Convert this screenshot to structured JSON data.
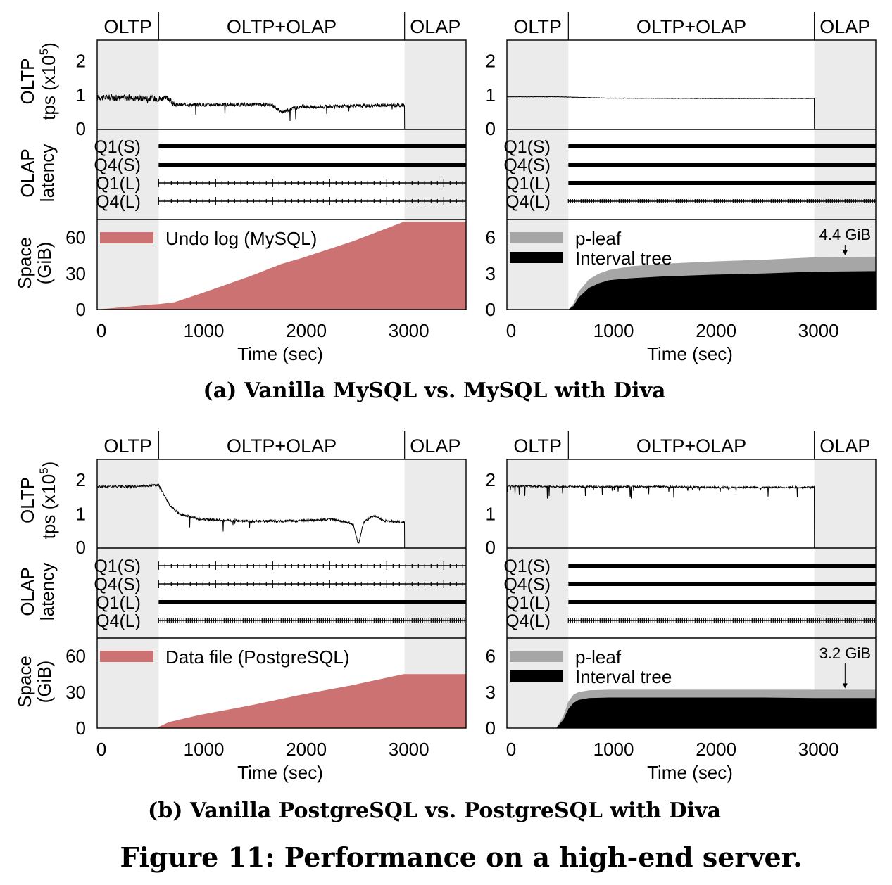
{
  "chart_data": [
    {
      "type": "line",
      "panel": "a-left",
      "phases": [
        "OLTP",
        "OLTP+OLAP",
        "OLAP"
      ],
      "phase_bounds": [
        0,
        600,
        3000,
        3600
      ],
      "xlabel": "Time (sec)",
      "xticks": [
        "0",
        "1000",
        "2000",
        "3000"
      ],
      "xlim": [
        0,
        3600
      ],
      "oltp": {
        "ylabel": [
          "OLTP",
          "tps (x10",
          "5",
          ")"
        ],
        "yticks": [
          "0",
          "1",
          "2"
        ],
        "ylim": [
          0,
          2.6
        ],
        "x": [
          0,
          300,
          600,
          700,
          750,
          1000,
          1500,
          1700,
          1800,
          1900,
          2000,
          2200,
          2500,
          2800,
          2990
        ],
        "y": [
          0.93,
          0.92,
          0.9,
          0.9,
          0.72,
          0.72,
          0.72,
          0.72,
          0.5,
          0.6,
          0.66,
          0.66,
          0.68,
          0.7,
          0.7
        ],
        "end": 3000
      },
      "olap": {
        "ylabel": [
          "OLAP",
          "latency"
        ],
        "rows": [
          "Q1(S)",
          "Q4(S)",
          "Q1(L)",
          "Q4(L)"
        ],
        "styles": [
          "thick",
          "thick",
          "sparse",
          "sparse"
        ]
      },
      "space": {
        "ylabel": [
          "Space",
          "(GiB)"
        ],
        "yticks": [
          "0",
          "30",
          "60"
        ],
        "ylim": [
          0,
          75
        ],
        "series": [
          {
            "name": "Undo log (MySQL)",
            "color": "#cc7272",
            "x": [
              0,
              500,
              600,
              750,
              1000,
              1500,
              1800,
              2000,
              2500,
              2990,
              3600
            ],
            "y": [
              0,
              4,
              4.5,
              6,
              13,
              28,
              38,
              43,
              57,
              73,
              73
            ]
          }
        ]
      }
    },
    {
      "type": "line",
      "panel": "a-right",
      "phases": [
        "OLTP",
        "OLTP+OLAP",
        "OLAP"
      ],
      "phase_bounds": [
        0,
        600,
        3000,
        3600
      ],
      "xlabel": "Time (sec)",
      "xticks": [
        "0",
        "1000",
        "2000",
        "3000"
      ],
      "xlim": [
        0,
        3600
      ],
      "oltp": {
        "yticks": [
          "0",
          "1",
          "2"
        ],
        "ylim": [
          0,
          2.6
        ],
        "x": [
          0,
          500,
          700,
          1000,
          2000,
          2990
        ],
        "y": [
          0.95,
          0.95,
          0.93,
          0.91,
          0.9,
          0.9
        ],
        "end": 3000
      },
      "olap": {
        "rows": [
          "Q1(S)",
          "Q4(S)",
          "Q1(L)",
          "Q4(L)"
        ],
        "styles": [
          "thick",
          "thick",
          "thick",
          "dense"
        ]
      },
      "space": {
        "yticks": [
          "0",
          "3",
          "6"
        ],
        "ylim": [
          0,
          7.5
        ],
        "annotation": "4.4 GiB",
        "annotation_x": 3300,
        "annotation_y": 4.4,
        "series": [
          {
            "name": "p-leaf",
            "color": "#a6a6a6",
            "x": [
              0,
              600,
              650,
              700,
              800,
              900,
              1000,
              1200,
              1500,
              2000,
              2500,
              3000,
              3600
            ],
            "y": [
              0,
              0,
              0.5,
              1.5,
              2.5,
              3.0,
              3.3,
              3.6,
              3.8,
              4.0,
              4.15,
              4.35,
              4.4
            ]
          },
          {
            "name": "Interval tree",
            "color": "#000000",
            "x": [
              0,
              600,
              650,
              700,
              800,
              900,
              1000,
              1200,
              1500,
              2000,
              2500,
              3000,
              3600
            ],
            "y": [
              0,
              0,
              0.3,
              1.0,
              1.8,
              2.2,
              2.45,
              2.6,
              2.75,
              2.9,
              3.0,
              3.15,
              3.2
            ]
          }
        ]
      }
    },
    {
      "type": "line",
      "panel": "b-left",
      "phases": [
        "OLTP",
        "OLTP+OLAP",
        "OLAP"
      ],
      "phase_bounds": [
        0,
        600,
        3000,
        3600
      ],
      "xlabel": "Time (sec)",
      "xticks": [
        "0",
        "1000",
        "2000",
        "3000"
      ],
      "xlim": [
        0,
        3600
      ],
      "oltp": {
        "ylabel": [
          "OLTP",
          "tps (x10",
          "5",
          ")"
        ],
        "yticks": [
          "0",
          "1",
          "2"
        ],
        "ylim": [
          0,
          2.6
        ],
        "x": [
          0,
          300,
          600,
          700,
          800,
          1000,
          1500,
          2000,
          2300,
          2500,
          2550,
          2600,
          2700,
          2800,
          2990
        ],
        "y": [
          1.8,
          1.8,
          1.85,
          1.3,
          1.0,
          0.85,
          0.78,
          0.8,
          0.85,
          0.7,
          0.1,
          0.75,
          0.95,
          0.8,
          0.75
        ],
        "end": 3000
      },
      "olap": {
        "ylabel": [
          "OLAP",
          "latency"
        ],
        "rows": [
          "Q1(S)",
          "Q4(S)",
          "Q1(L)",
          "Q4(L)"
        ],
        "styles": [
          "sparse",
          "sparse",
          "thick",
          "dense"
        ]
      },
      "space": {
        "ylabel": [
          "Space",
          "(GiB)"
        ],
        "yticks": [
          "0",
          "30",
          "60"
        ],
        "ylim": [
          0,
          75
        ],
        "series": [
          {
            "name": "Data file (PostgreSQL)",
            "color": "#cc7272",
            "x": [
              0,
              580,
              600,
              700,
              1000,
              1500,
              2000,
              2500,
              2990,
              3600
            ],
            "y": [
              0,
              0,
              1,
              5,
              11,
              19,
              28,
              36,
              45,
              45
            ]
          }
        ]
      }
    },
    {
      "type": "line",
      "panel": "b-right",
      "phases": [
        "OLTP",
        "OLTP+OLAP",
        "OLAP"
      ],
      "phase_bounds": [
        0,
        600,
        3000,
        3600
      ],
      "xlabel": "Time (sec)",
      "xticks": [
        "0",
        "1000",
        "2000",
        "3000"
      ],
      "xlim": [
        0,
        3600
      ],
      "oltp": {
        "yticks": [
          "0",
          "1",
          "2"
        ],
        "ylim": [
          0,
          2.6
        ],
        "x": [
          0,
          600,
          1000,
          1500,
          2000,
          2500,
          2990
        ],
        "y": [
          1.82,
          1.8,
          1.8,
          1.8,
          1.78,
          1.78,
          1.78
        ],
        "end": 3000
      },
      "olap": {
        "rows": [
          "Q1(S)",
          "Q4(S)",
          "Q1(L)",
          "Q4(L)"
        ],
        "styles": [
          "thick",
          "thick",
          "thick",
          "dense"
        ]
      },
      "space": {
        "yticks": [
          "0",
          "3",
          "6"
        ],
        "ylim": [
          0,
          7.5
        ],
        "annotation": "3.2 GiB",
        "annotation_x": 3300,
        "annotation_y": 3.2,
        "series": [
          {
            "name": "p-leaf",
            "color": "#a6a6a6",
            "x": [
              0,
              480,
              550,
              600,
              650,
              700,
              800,
              1000,
              1500,
              2000,
              2500,
              3000,
              3600
            ],
            "y": [
              0,
              0,
              1.0,
              2.2,
              2.8,
              3.0,
              3.15,
              3.2,
              3.2,
              3.2,
              3.2,
              3.2,
              3.2
            ]
          },
          {
            "name": "Interval tree",
            "color": "#000000",
            "x": [
              0,
              480,
              550,
              600,
              650,
              700,
              800,
              1000,
              1500,
              2000,
              2500,
              3000,
              3600
            ],
            "y": [
              0,
              0,
              0.7,
              1.6,
              2.1,
              2.35,
              2.5,
              2.55,
              2.55,
              2.55,
              2.55,
              2.5,
              2.5
            ]
          }
        ]
      }
    }
  ],
  "captions": {
    "a": "(a) Vanilla MySQL vs. MySQL with Diva",
    "b": "(b) Vanilla PostgreSQL vs. PostgreSQL with Diva",
    "figure": "Figure 11: Performance on a high-end server."
  }
}
